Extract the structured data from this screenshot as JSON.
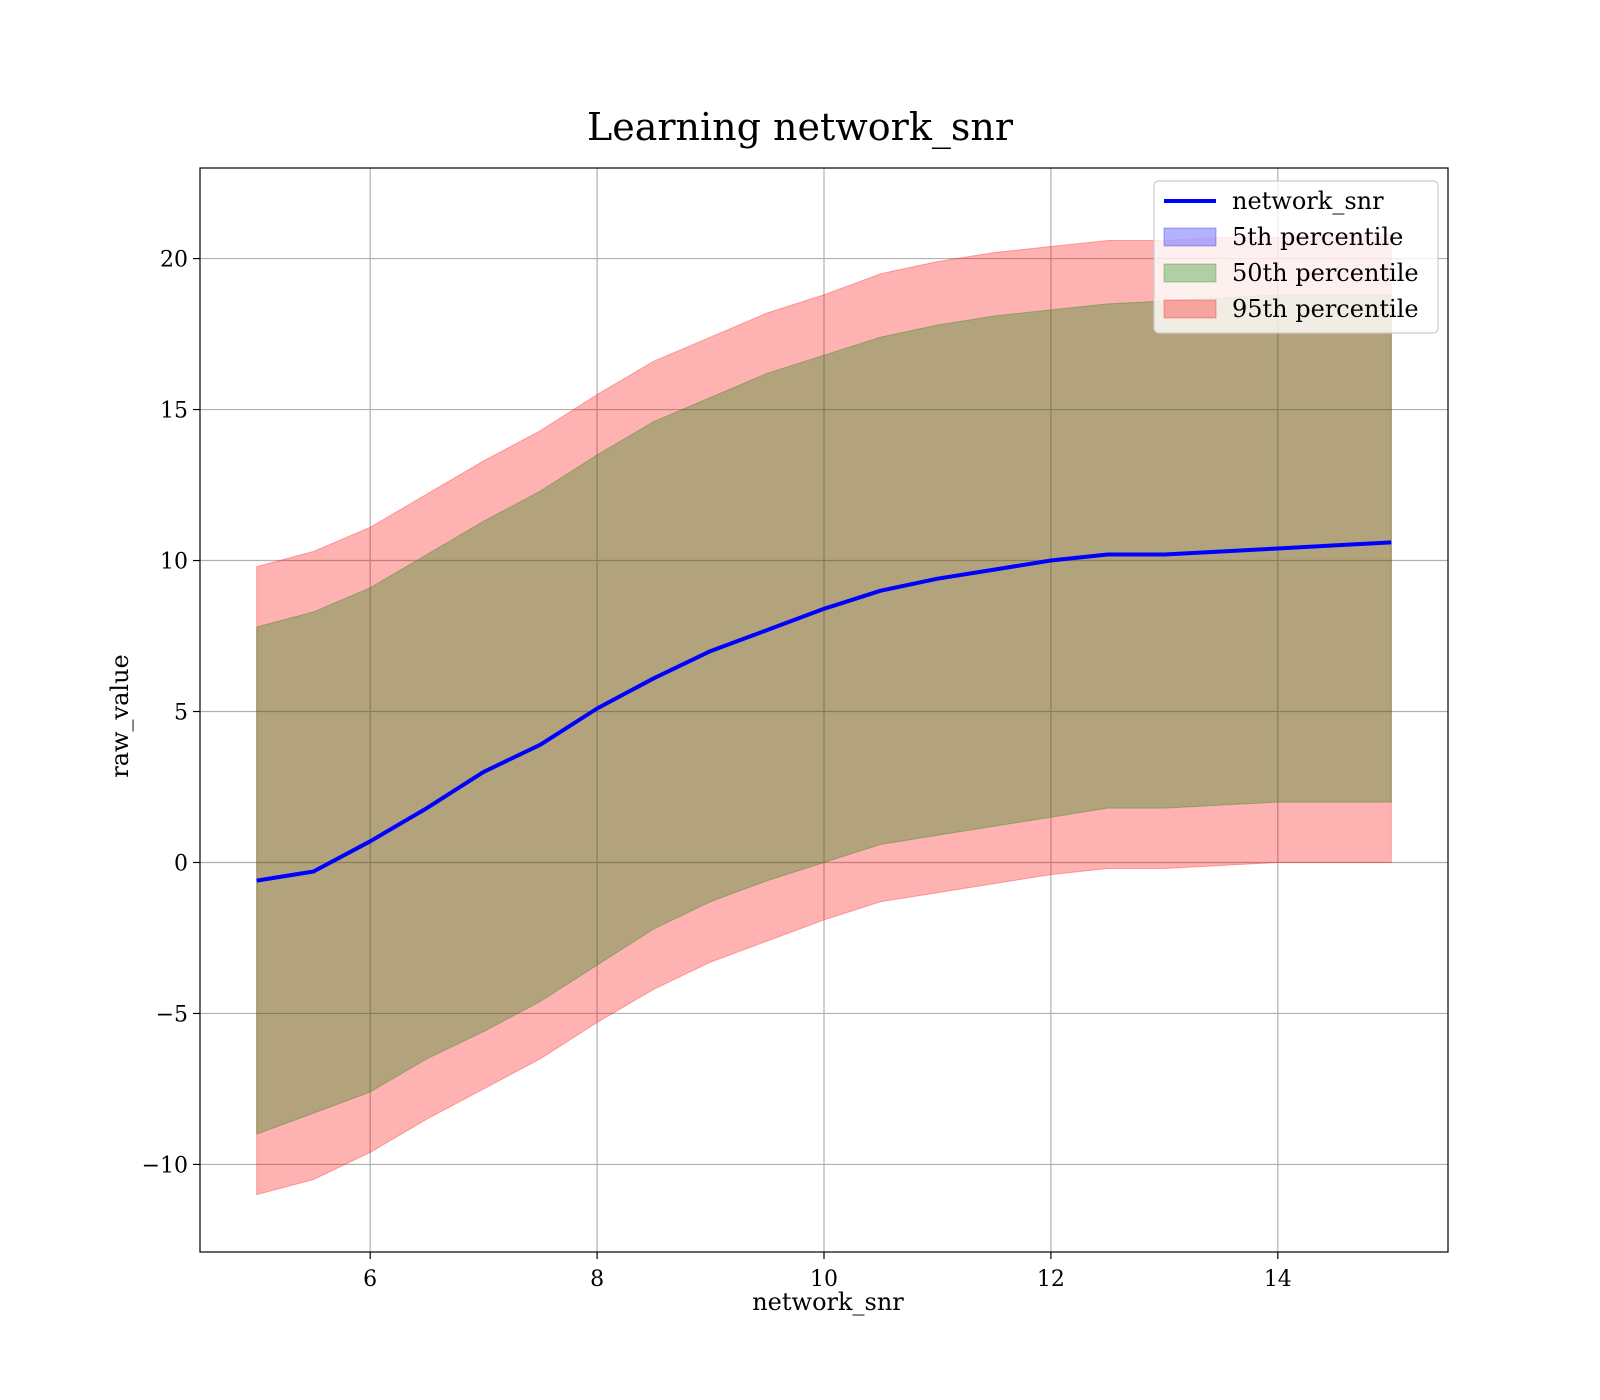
{
  "chart_data": {
    "type": "area",
    "title": "Learning network_snr",
    "xlabel": "network_snr",
    "ylabel": "raw_value",
    "xlim": [
      4.5,
      15.5
    ],
    "ylim": [
      -12.9,
      23.0
    ],
    "xticks": [
      6,
      8,
      10,
      12,
      14
    ],
    "yticks": [
      -10,
      -5,
      0,
      5,
      10,
      15,
      20
    ],
    "grid": true,
    "legend_position": "top-right",
    "x": [
      5.0,
      5.5,
      6.0,
      6.5,
      7.0,
      7.5,
      8.0,
      8.5,
      9.0,
      9.5,
      10.0,
      10.5,
      11.0,
      11.5,
      12.0,
      12.5,
      13.0,
      13.5,
      14.0,
      14.5,
      15.0
    ],
    "series": [
      {
        "name": "network_snr",
        "kind": "line",
        "color": "#0000ff",
        "values": [
          -0.6,
          -0.3,
          0.7,
          1.8,
          3.0,
          3.9,
          5.1,
          6.1,
          7.0,
          7.7,
          8.4,
          9.0,
          9.4,
          9.7,
          10.0,
          10.2,
          10.2,
          10.3,
          10.4,
          10.5,
          10.6
        ]
      },
      {
        "name": "5th percentile",
        "kind": "band",
        "color": "#0000ff",
        "lower": [
          -0.6,
          -0.3,
          0.7,
          1.8,
          3.0,
          3.9,
          5.1,
          6.1,
          7.0,
          7.7,
          8.4,
          9.0,
          9.4,
          9.7,
          10.0,
          10.2,
          10.2,
          10.3,
          10.4,
          10.5,
          10.6
        ],
        "upper": [
          -0.6,
          -0.3,
          0.7,
          1.8,
          3.0,
          3.9,
          5.1,
          6.1,
          7.0,
          7.7,
          8.4,
          9.0,
          9.4,
          9.7,
          10.0,
          10.2,
          10.2,
          10.3,
          10.4,
          10.5,
          10.6
        ]
      },
      {
        "name": "50th percentile",
        "kind": "band",
        "color": "#008000",
        "lower": [
          -9.0,
          -8.3,
          -7.6,
          -6.5,
          -5.6,
          -4.6,
          -3.4,
          -2.2,
          -1.3,
          -0.6,
          0.0,
          0.6,
          0.9,
          1.2,
          1.5,
          1.8,
          1.8,
          1.9,
          2.0,
          2.0,
          2.0
        ],
        "upper": [
          7.8,
          8.3,
          9.1,
          10.2,
          11.3,
          12.3,
          13.5,
          14.6,
          15.4,
          16.2,
          16.8,
          17.4,
          17.8,
          18.1,
          18.3,
          18.5,
          18.6,
          18.7,
          18.8,
          18.8,
          18.8
        ]
      },
      {
        "name": "95th percentile",
        "kind": "band",
        "color": "#ff0000",
        "lower": [
          -11.0,
          -10.5,
          -9.6,
          -8.5,
          -7.5,
          -6.5,
          -5.3,
          -4.2,
          -3.3,
          -2.6,
          -1.9,
          -1.3,
          -1.0,
          -0.7,
          -0.4,
          -0.2,
          -0.2,
          -0.1,
          0.0,
          0.0,
          0.0
        ],
        "upper": [
          9.8,
          10.3,
          11.1,
          12.2,
          13.3,
          14.3,
          15.5,
          16.6,
          17.4,
          18.2,
          18.8,
          19.5,
          19.9,
          20.2,
          20.4,
          20.6,
          20.6,
          20.7,
          20.7,
          20.8,
          20.8
        ]
      }
    ]
  }
}
